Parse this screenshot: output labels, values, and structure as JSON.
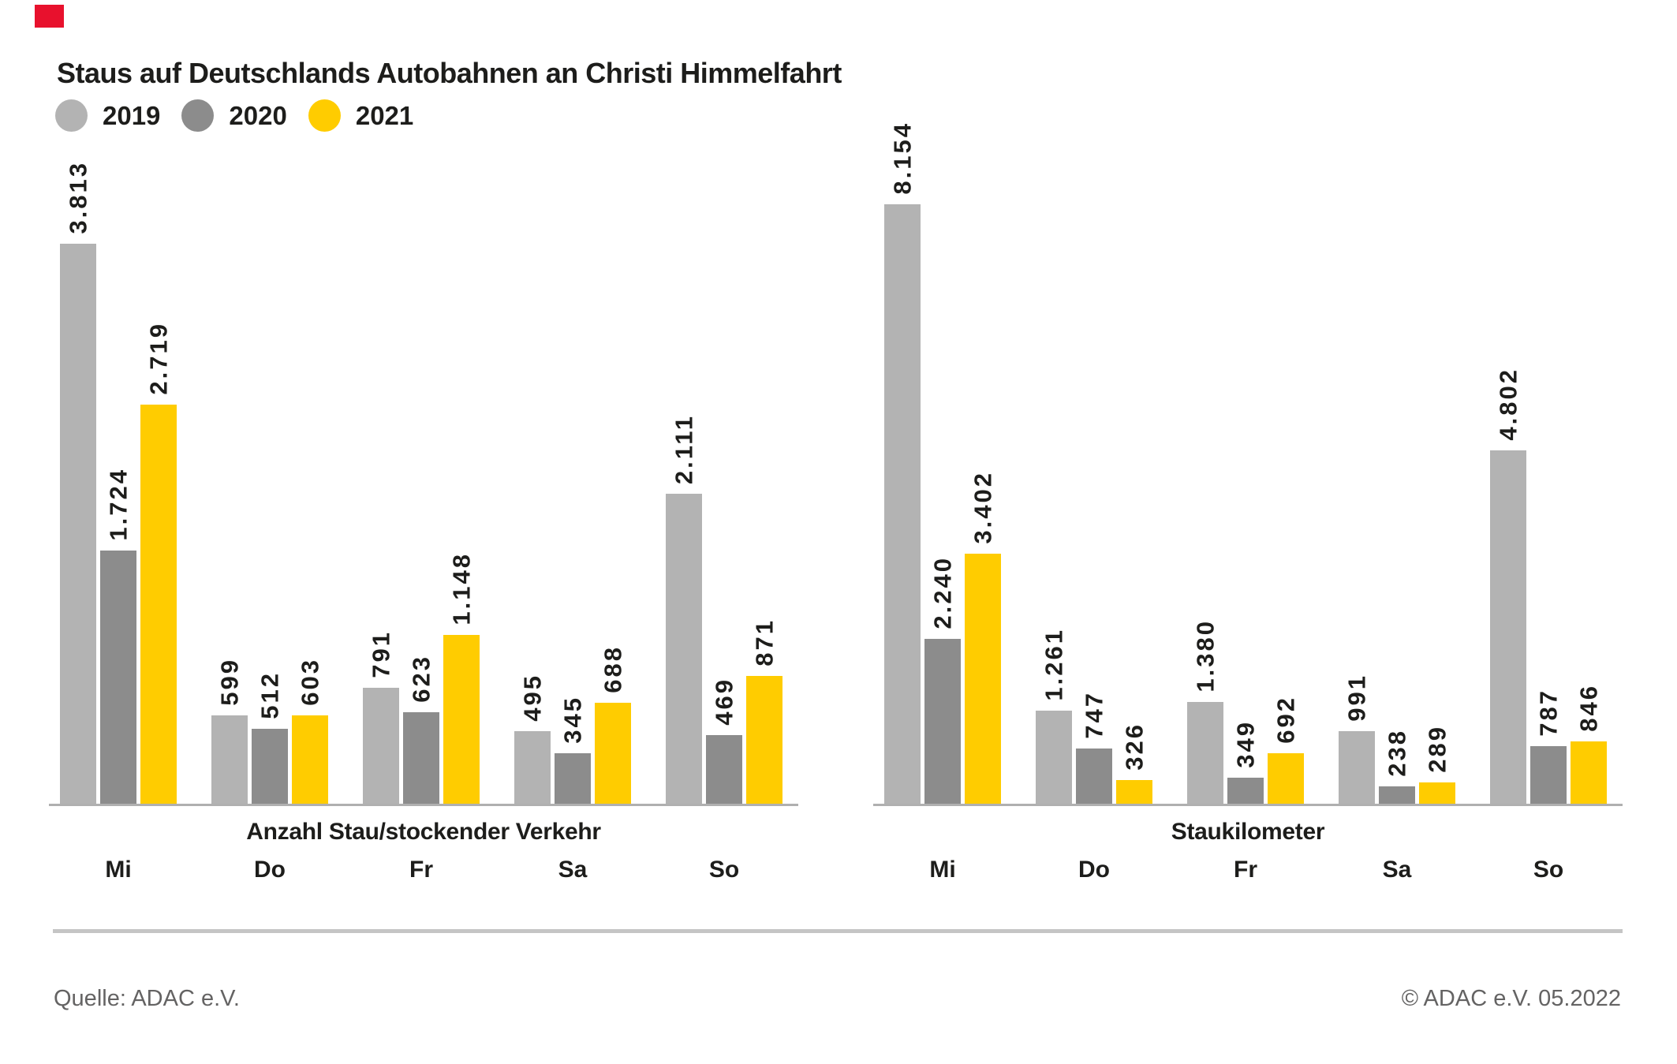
{
  "page": {
    "title": "Staus auf Deutschlands Autobahnen an Christi Himmelfahrt",
    "source_left": "Quelle: ADAC e.V.",
    "source_right": "© ADAC e.V. 05.2022"
  },
  "legend": [
    {
      "label": "2019",
      "color": "#b3b3b3"
    },
    {
      "label": "2020",
      "color": "#8c8c8c"
    },
    {
      "label": "2021",
      "color": "#ffcc00"
    }
  ],
  "colors": {
    "text": "#1d1d1b",
    "axis_line": "#b0b0b0",
    "divider": "#c5c5c5",
    "footer_text": "#646363",
    "marker_red": "#e8112d",
    "series_2019": "#b3b3b3",
    "series_2020": "#8c8c8c",
    "series_2021": "#ffcc00"
  },
  "chart_data": [
    {
      "type": "bar",
      "title": "Anzahl Stau/stockender Verkehr",
      "categories": [
        "Mi",
        "Do",
        "Fr",
        "Sa",
        "So"
      ],
      "series": [
        {
          "name": "2019",
          "color": "#b3b3b3",
          "values": [
            3813,
            599,
            791,
            495,
            2111
          ],
          "labels": [
            "3.813",
            "599",
            "791",
            "495",
            "2.111"
          ]
        },
        {
          "name": "2020",
          "color": "#8c8c8c",
          "values": [
            1724,
            512,
            623,
            345,
            469
          ],
          "labels": [
            "1.724",
            "512",
            "623",
            "345",
            "469"
          ]
        },
        {
          "name": "2021",
          "color": "#ffcc00",
          "values": [
            2719,
            603,
            1148,
            688,
            871
          ],
          "labels": [
            "2.719",
            "603",
            "1.148",
            "688",
            "871"
          ]
        }
      ],
      "ylim": [
        0,
        4082
      ],
      "grid": false,
      "value_label_rotation": 90,
      "legend_position": "top-left"
    },
    {
      "type": "bar",
      "title": "Staukilometer",
      "categories": [
        "Mi",
        "Do",
        "Fr",
        "Sa",
        "So"
      ],
      "series": [
        {
          "name": "2019",
          "color": "#b3b3b3",
          "values": [
            8154,
            1261,
            1380,
            991,
            4802
          ],
          "labels": [
            "8.154",
            "1.261",
            "1.380",
            "991",
            "4.802"
          ]
        },
        {
          "name": "2020",
          "color": "#8c8c8c",
          "values": [
            2240,
            747,
            349,
            238,
            787
          ],
          "labels": [
            "2.240",
            "747",
            "349",
            "238",
            "787"
          ]
        },
        {
          "name": "2021",
          "color": "#ffcc00",
          "values": [
            3402,
            326,
            692,
            289,
            846
          ],
          "labels": [
            "3.402",
            "326",
            "692",
            "289",
            "846"
          ]
        }
      ],
      "ylim": [
        0,
        8154
      ],
      "grid": false,
      "value_label_rotation": 90,
      "legend_position": "top-left"
    }
  ]
}
